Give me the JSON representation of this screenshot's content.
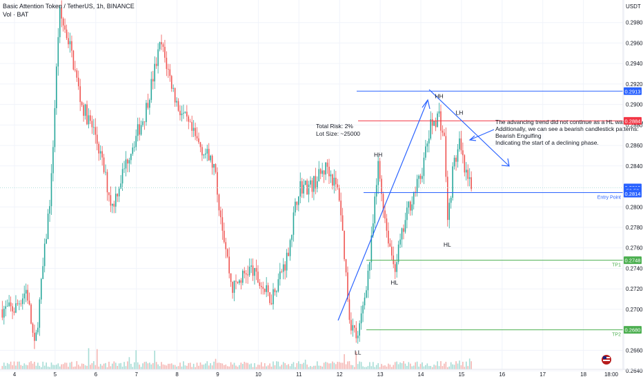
{
  "header": {
    "title": "Basic Attention Token / TetherUS, 1h, BINANCE",
    "volume_label": "Vol · BAT"
  },
  "price_axis": {
    "currency": "USDT",
    "ticks": [
      "0.2980",
      "0.2960",
      "0.2940",
      "0.2920",
      "0.2900",
      "0.2880",
      "0.2860",
      "0.2840",
      "0.2800",
      "0.2780",
      "0.2760",
      "0.2740",
      "0.2720",
      "0.2700",
      "0.2660",
      "0.2640"
    ]
  },
  "time_axis": {
    "ticks": [
      "4",
      "5",
      "6",
      "7",
      "8",
      "9",
      "10",
      "11",
      "12",
      "13",
      "14",
      "15",
      "16",
      "17",
      "18",
      "18:00"
    ]
  },
  "price_badges": [
    {
      "label": "0.2913",
      "price": 0.2913,
      "color": "#2962ff"
    },
    {
      "label": "0.2884",
      "price": 0.2884,
      "color": "#f23645"
    },
    {
      "label": "0.2819",
      "price": 0.2819,
      "color": "#2962ff"
    },
    {
      "label": "56:58",
      "price": 0.2816,
      "color": "#2962ff"
    },
    {
      "label": "0.2814",
      "price": 0.2813,
      "color": "#2962ff"
    },
    {
      "label": "0.2748",
      "price": 0.2748,
      "color": "#4caf50"
    },
    {
      "label": "0.2680",
      "price": 0.268,
      "color": "#4caf50"
    }
  ],
  "levels": [
    {
      "name": "resistance",
      "price": 0.2913,
      "color": "#2962ff"
    },
    {
      "name": "stop",
      "price": 0.2884,
      "color": "#f23645"
    },
    {
      "name": "entry",
      "price": 0.2814,
      "color": "#2962ff",
      "label": "Entry Point"
    },
    {
      "name": "tp1",
      "price": 0.2748,
      "color": "#4caf50",
      "label": "TP1"
    },
    {
      "name": "tp2",
      "price": 0.268,
      "color": "#4caf50",
      "label": "TP2"
    }
  ],
  "risk_note": {
    "line1": "Total Risk: 2%",
    "line2": "Lot Size: ~25000"
  },
  "analysis_note": [
    "The advancing trend did not continue as a HL was formed",
    "Additionally, we can see a bearish candlestick patterns:",
    "Bearish Engulfing",
    "Indicating the start of a declining phase."
  ],
  "swing_labels": [
    {
      "text": "LL",
      "day": 12.45,
      "price": 0.2656
    },
    {
      "text": "HH",
      "day": 12.95,
      "price": 0.2849
    },
    {
      "text": "HL",
      "day": 13.35,
      "price": 0.2724
    },
    {
      "text": "HH",
      "day": 14.45,
      "price": 0.2906
    },
    {
      "text": "LH",
      "day": 14.95,
      "price": 0.289
    },
    {
      "text": "HL",
      "day": 14.65,
      "price": 0.2761
    }
  ],
  "colors": {
    "up": "#26a69a",
    "down": "#ef5350",
    "drawing": "#2962ff",
    "grid": "#f0f3fa"
  },
  "chart_data": {
    "type": "candlestick",
    "symbol": "BATUSDT",
    "interval": "1h",
    "ylim": [
      0.2632,
      0.3002
    ],
    "last_price": 0.2814,
    "key_points": [
      {
        "day": 4.0,
        "price": 0.27
      },
      {
        "day": 4.3,
        "price": 0.272
      },
      {
        "day": 4.5,
        "price": 0.266
      },
      {
        "day": 4.9,
        "price": 0.282
      },
      {
        "day": 5.1,
        "price": 0.299
      },
      {
        "day": 5.35,
        "price": 0.296
      },
      {
        "day": 5.65,
        "price": 0.29
      },
      {
        "day": 6.0,
        "price": 0.287
      },
      {
        "day": 6.4,
        "price": 0.28
      },
      {
        "day": 6.8,
        "price": 0.285
      },
      {
        "day": 7.2,
        "price": 0.289
      },
      {
        "day": 7.6,
        "price": 0.296
      },
      {
        "day": 8.0,
        "price": 0.29
      },
      {
        "day": 8.4,
        "price": 0.287
      },
      {
        "day": 8.9,
        "price": 0.284
      },
      {
        "day": 9.35,
        "price": 0.272
      },
      {
        "day": 9.8,
        "price": 0.274
      },
      {
        "day": 10.3,
        "price": 0.271
      },
      {
        "day": 10.7,
        "price": 0.275
      },
      {
        "day": 11.0,
        "price": 0.282
      },
      {
        "day": 11.3,
        "price": 0.282
      },
      {
        "day": 11.7,
        "price": 0.284
      },
      {
        "day": 12.0,
        "price": 0.281
      },
      {
        "day": 12.25,
        "price": 0.269
      },
      {
        "day": 12.45,
        "price": 0.267
      },
      {
        "day": 12.75,
        "price": 0.275
      },
      {
        "day": 12.95,
        "price": 0.284
      },
      {
        "day": 13.15,
        "price": 0.278
      },
      {
        "day": 13.35,
        "price": 0.274
      },
      {
        "day": 13.7,
        "price": 0.28
      },
      {
        "day": 14.0,
        "price": 0.283
      },
      {
        "day": 14.25,
        "price": 0.288
      },
      {
        "day": 14.45,
        "price": 0.289
      },
      {
        "day": 14.6,
        "price": 0.286
      },
      {
        "day": 14.65,
        "price": 0.278
      },
      {
        "day": 14.8,
        "price": 0.284
      },
      {
        "day": 14.95,
        "price": 0.286
      },
      {
        "day": 15.1,
        "price": 0.283
      },
      {
        "day": 15.25,
        "price": 0.2817
      }
    ]
  }
}
